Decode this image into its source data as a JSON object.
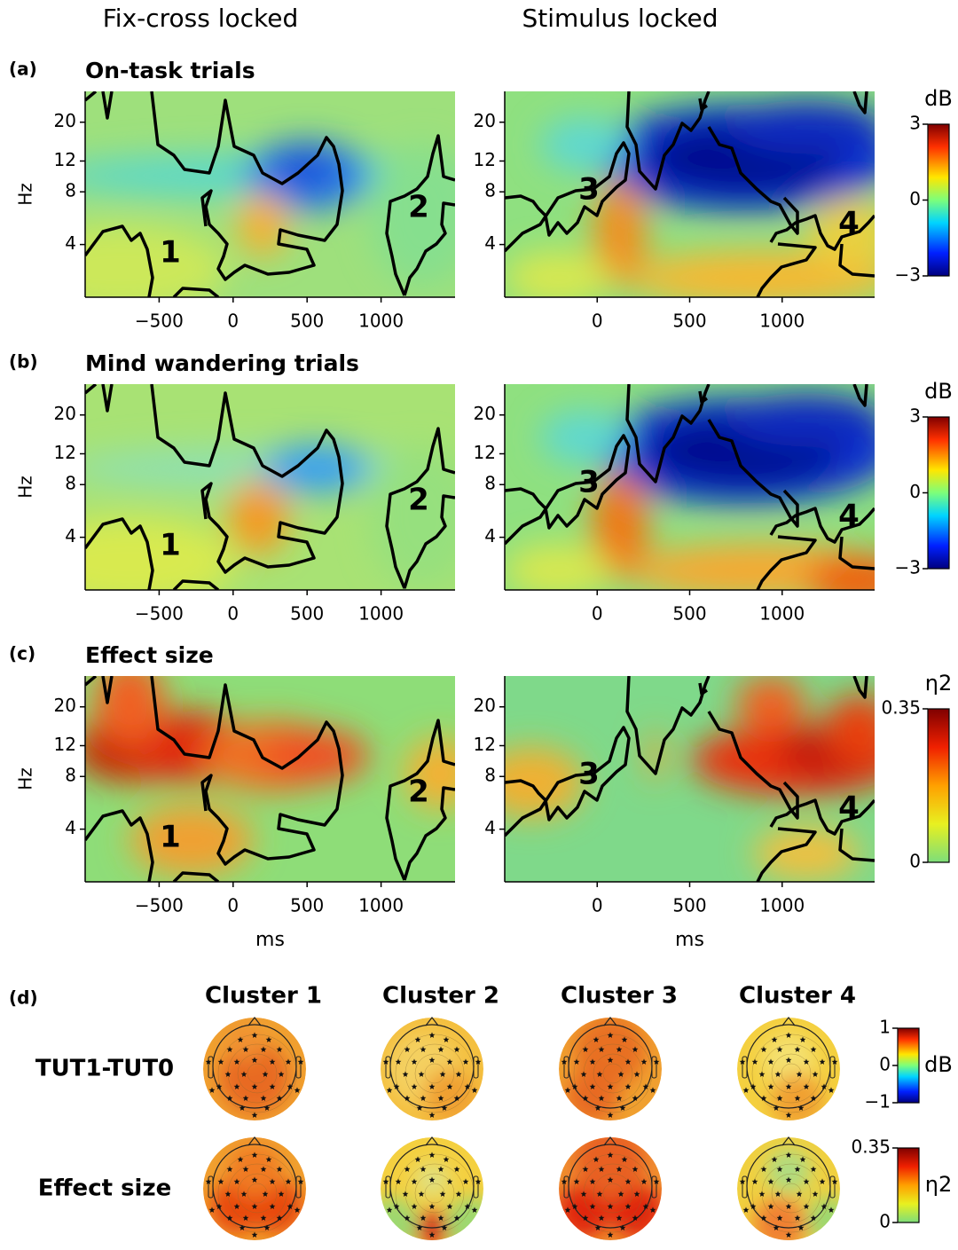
{
  "column_titles": [
    "Fix-cross locked",
    "Stimulus locked"
  ],
  "rows": [
    {
      "label": "(a)",
      "title": "On-task trials",
      "colorbar": {
        "unit": "dB",
        "ticks": [
          3,
          0,
          {
            "value": -3,
            "label": "−3"
          }
        ]
      }
    },
    {
      "label": "(b)",
      "title": "Mind wandering trials",
      "colorbar": {
        "unit": "dB",
        "ticks": [
          3,
          0,
          {
            "value": -3,
            "label": "−3"
          }
        ]
      }
    },
    {
      "label": "(c)",
      "title": "Effect size",
      "colorbar": {
        "unit": "η2",
        "ticks": [
          0.35,
          0
        ]
      }
    }
  ],
  "axes": {
    "ylabel": "Hz",
    "xlabel": "ms",
    "yscale": "log",
    "ylim": [
      2,
      30
    ],
    "yticks": [
      4,
      8,
      12,
      20
    ],
    "fix_xlim": [
      -1000,
      1500
    ],
    "fix_xticks": [
      {
        "value": -500,
        "label": "−500"
      },
      0,
      500,
      1000
    ],
    "stim_xlim": [
      -500,
      1500
    ],
    "stim_xticks": [
      0,
      500,
      1000
    ]
  },
  "cluster_labels": [
    "1",
    "2",
    "3",
    "4"
  ],
  "topography": {
    "label": "(d)",
    "clusters": [
      "Cluster 1",
      "Cluster 2",
      "Cluster 3",
      "Cluster 4"
    ],
    "rows": [
      {
        "label": "TUT1-TUT0",
        "colorbar": {
          "unit": "dB",
          "ticks": [
            1,
            0,
            {
              "value": -1,
              "label": "−1"
            }
          ]
        }
      },
      {
        "label": "Effect size",
        "colorbar": {
          "unit": "η2",
          "ticks": [
            0.35,
            0
          ]
        }
      }
    ]
  }
}
